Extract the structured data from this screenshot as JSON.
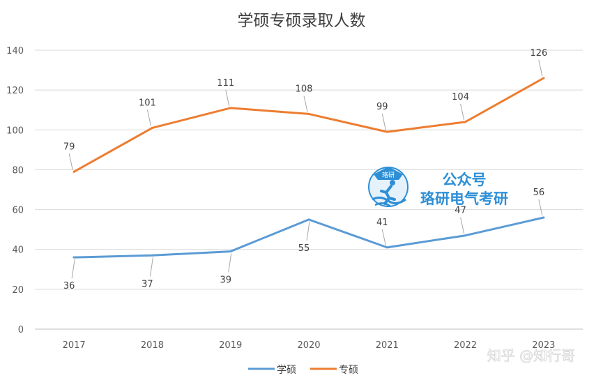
{
  "chart_data": {
    "type": "line",
    "title": "学硕专硕录取人数",
    "xlabel": "",
    "ylabel": "",
    "categories": [
      "2017",
      "2018",
      "2019",
      "2020",
      "2021",
      "2022",
      "2023"
    ],
    "ylim": [
      0,
      140
    ],
    "yticks": [
      0,
      20,
      40,
      60,
      80,
      100,
      120,
      140
    ],
    "grid": true,
    "legend_position": "bottom",
    "series": [
      {
        "name": "学硕",
        "color": "#5b9bd5",
        "values": [
          36,
          37,
          39,
          55,
          41,
          47,
          56
        ]
      },
      {
        "name": "专硕",
        "color": "#ed7d31",
        "values": [
          79,
          101,
          111,
          108,
          99,
          104,
          126
        ]
      }
    ]
  },
  "watermark": {
    "line1": "公众号",
    "line2": "珞研电气考研",
    "logo_text": "珞研",
    "color": "#2e8fd6",
    "icon": "runner-logo-icon"
  },
  "credit": "知乎 @知行哥"
}
